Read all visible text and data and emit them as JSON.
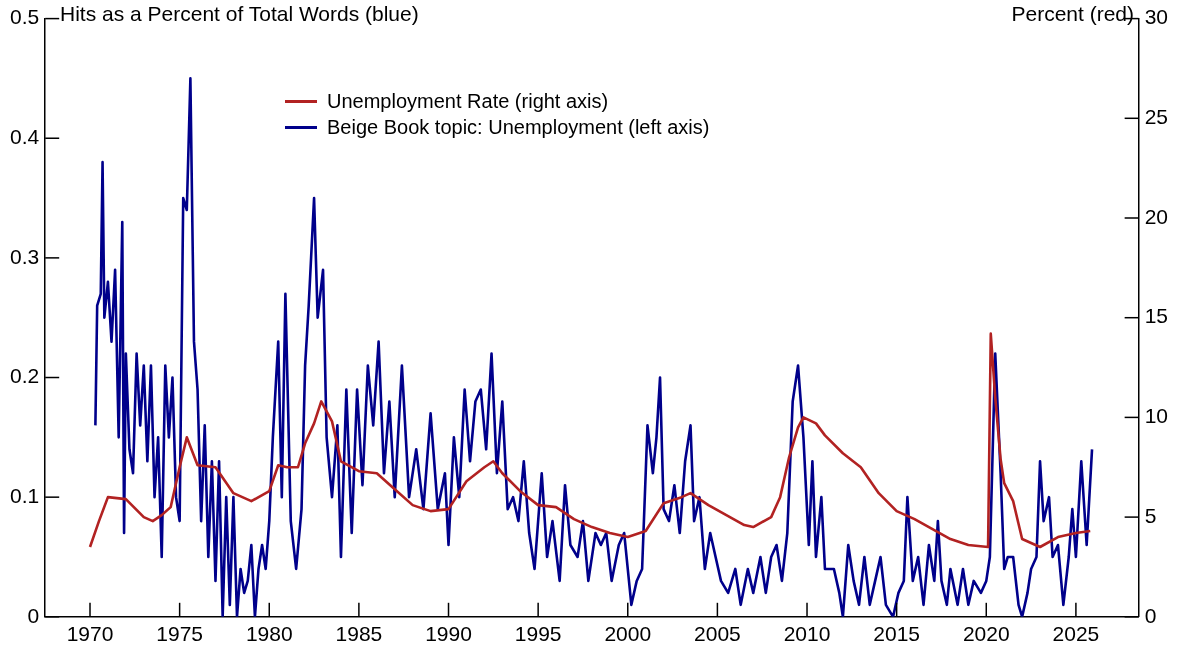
{
  "chart_data": {
    "type": "line",
    "ylabel": "Hits as a Percent of Total Words (blue)",
    "y2label": "Percent (red)",
    "xlim": [
      1967.5,
      2028.5
    ],
    "xticks": [
      1970,
      1975,
      1980,
      1985,
      1990,
      1995,
      2000,
      2005,
      2010,
      2015,
      2020,
      2025
    ],
    "ylim": [
      0,
      0.5
    ],
    "yticks": [
      0,
      0.1,
      0.2,
      0.3,
      0.4,
      0.5
    ],
    "y2lim": [
      0,
      30
    ],
    "y2ticks": [
      0,
      5,
      10,
      15,
      20,
      25,
      30
    ],
    "legend": "top",
    "grid": false,
    "marker": "none",
    "line_style": "solid",
    "series": [
      {
        "name": "Unemployment Rate (right axis)",
        "color": "#b22222",
        "axis": "y2",
        "x": [
          1970.0,
          1970.5,
          1971.0,
          1972.0,
          1973.0,
          1973.5,
          1974.0,
          1974.5,
          1975.0,
          1975.4,
          1976.0,
          1977.0,
          1978.0,
          1979.0,
          1980.0,
          1980.5,
          1981.0,
          1981.6,
          1982.0,
          1982.5,
          1982.9,
          1983.5,
          1984.0,
          1985.0,
          1986.0,
          1987.0,
          1988.0,
          1989.0,
          1990.0,
          1991.0,
          1992.0,
          1992.5,
          1993.0,
          1994.0,
          1995.0,
          1996.0,
          1997.0,
          1998.0,
          1999.0,
          2000.0,
          2001.0,
          2002.0,
          2003.0,
          2003.5,
          2004.5,
          2005.5,
          2006.5,
          2007.0,
          2008.0,
          2008.5,
          2009.0,
          2009.5,
          2009.8,
          2010.5,
          2011.0,
          2012.0,
          2013.0,
          2014.0,
          2015.0,
          2016.0,
          2017.0,
          2018.0,
          2019.0,
          2020.1,
          2020.25,
          2020.5,
          2020.8,
          2021.0,
          2021.5,
          2022.0,
          2023.0,
          2024.0,
          2025.0,
          2025.8
        ],
        "values": [
          3.5,
          4.8,
          6.0,
          5.9,
          5.0,
          4.8,
          5.1,
          5.5,
          7.5,
          9.0,
          7.6,
          7.5,
          6.2,
          5.8,
          6.3,
          7.6,
          7.5,
          7.5,
          8.7,
          9.7,
          10.8,
          9.8,
          7.8,
          7.3,
          7.2,
          6.4,
          5.6,
          5.3,
          5.4,
          6.8,
          7.5,
          7.8,
          7.2,
          6.3,
          5.6,
          5.5,
          4.9,
          4.5,
          4.2,
          4.0,
          4.3,
          5.7,
          6.0,
          6.2,
          5.6,
          5.1,
          4.6,
          4.5,
          5.0,
          6.0,
          8.0,
          9.5,
          10.0,
          9.7,
          9.1,
          8.2,
          7.5,
          6.2,
          5.3,
          4.9,
          4.4,
          3.9,
          3.6,
          3.5,
          14.2,
          11.0,
          7.9,
          6.7,
          5.8,
          3.9,
          3.5,
          4.0,
          4.2,
          4.3
        ]
      },
      {
        "name": "Beige Book topic: Unemployment (left axis)",
        "color": "#00008b",
        "x": [
          1970.3,
          1970.4,
          1970.6,
          1970.7,
          1970.8,
          1971.0,
          1971.2,
          1971.4,
          1971.6,
          1971.8,
          1971.9,
          1972.0,
          1972.2,
          1972.4,
          1972.6,
          1972.8,
          1973.0,
          1973.2,
          1973.4,
          1973.6,
          1973.8,
          1974.0,
          1974.2,
          1974.4,
          1974.6,
          1974.8,
          1975.0,
          1975.2,
          1975.4,
          1975.6,
          1975.8,
          1976.0,
          1976.2,
          1976.4,
          1976.6,
          1976.8,
          1977.0,
          1977.2,
          1977.4,
          1977.6,
          1977.8,
          1978.0,
          1978.2,
          1978.4,
          1978.6,
          1978.8,
          1979.0,
          1979.2,
          1979.4,
          1979.6,
          1979.8,
          1980.0,
          1980.2,
          1980.5,
          1980.7,
          1980.9,
          1981.2,
          1981.5,
          1981.8,
          1982.0,
          1982.2,
          1982.5,
          1982.7,
          1983.0,
          1983.2,
          1983.5,
          1983.8,
          1984.0,
          1984.3,
          1984.6,
          1984.9,
          1985.2,
          1985.5,
          1985.8,
          1986.1,
          1986.4,
          1986.7,
          1987.0,
          1987.4,
          1987.8,
          1988.2,
          1988.6,
          1989.0,
          1989.4,
          1989.8,
          1990.0,
          1990.3,
          1990.6,
          1990.9,
          1991.2,
          1991.5,
          1991.8,
          1992.1,
          1992.4,
          1992.7,
          1993.0,
          1993.3,
          1993.6,
          1993.9,
          1994.2,
          1994.5,
          1994.8,
          1995.2,
          1995.5,
          1995.8,
          1996.2,
          1996.5,
          1996.8,
          1997.2,
          1997.5,
          1997.8,
          1998.2,
          1998.5,
          1998.8,
          1999.1,
          1999.5,
          1999.8,
          2000.2,
          2000.5,
          2000.8,
          2001.1,
          2001.4,
          2001.6,
          2001.8,
          2002.0,
          2002.3,
          2002.6,
          2002.9,
          2003.2,
          2003.5,
          2003.7,
          2004.0,
          2004.3,
          2004.6,
          2004.9,
          2005.2,
          2005.6,
          2006.0,
          2006.3,
          2006.7,
          2007.0,
          2007.4,
          2007.7,
          2008.0,
          2008.3,
          2008.6,
          2008.9,
          2009.2,
          2009.5,
          2009.8,
          2010.1,
          2010.3,
          2010.5,
          2010.8,
          2011.0,
          2011.5,
          2011.8,
          2012.0,
          2012.3,
          2012.6,
          2012.9,
          2013.2,
          2013.5,
          2013.8,
          2014.1,
          2014.4,
          2014.8,
          2015.1,
          2015.4,
          2015.6,
          2015.9,
          2016.2,
          2016.5,
          2016.8,
          2017.1,
          2017.3,
          2017.5,
          2017.8,
          2018.0,
          2018.4,
          2018.7,
          2019.0,
          2019.3,
          2019.7,
          2020.0,
          2020.2,
          2020.5,
          2020.8,
          2021.0,
          2021.2,
          2021.5,
          2021.8,
          2022.0,
          2022.3,
          2022.5,
          2022.8,
          2023.0,
          2023.2,
          2023.5,
          2023.7,
          2024.0,
          2024.3,
          2024.6,
          2024.8,
          2025.0,
          2025.3,
          2025.6,
          2025.9
        ],
        "values": [
          0.16,
          0.26,
          0.27,
          0.38,
          0.25,
          0.28,
          0.23,
          0.29,
          0.15,
          0.33,
          0.07,
          0.22,
          0.14,
          0.12,
          0.22,
          0.16,
          0.21,
          0.13,
          0.21,
          0.1,
          0.15,
          0.05,
          0.21,
          0.15,
          0.2,
          0.1,
          0.08,
          0.35,
          0.34,
          0.45,
          0.23,
          0.19,
          0.08,
          0.16,
          0.05,
          0.13,
          0.03,
          0.13,
          0.0,
          0.1,
          0.01,
          0.1,
          0.0,
          0.04,
          0.02,
          0.03,
          0.06,
          0.0,
          0.04,
          0.06,
          0.04,
          0.08,
          0.15,
          0.23,
          0.1,
          0.27,
          0.08,
          0.04,
          0.09,
          0.21,
          0.26,
          0.35,
          0.25,
          0.29,
          0.15,
          0.1,
          0.16,
          0.05,
          0.19,
          0.07,
          0.19,
          0.11,
          0.21,
          0.16,
          0.23,
          0.12,
          0.18,
          0.1,
          0.21,
          0.1,
          0.14,
          0.09,
          0.17,
          0.09,
          0.12,
          0.06,
          0.15,
          0.1,
          0.19,
          0.13,
          0.18,
          0.19,
          0.14,
          0.22,
          0.12,
          0.18,
          0.09,
          0.1,
          0.08,
          0.13,
          0.07,
          0.04,
          0.12,
          0.05,
          0.08,
          0.03,
          0.11,
          0.06,
          0.05,
          0.08,
          0.03,
          0.07,
          0.06,
          0.07,
          0.03,
          0.06,
          0.07,
          0.01,
          0.03,
          0.04,
          0.16,
          0.12,
          0.15,
          0.2,
          0.09,
          0.08,
          0.11,
          0.07,
          0.13,
          0.16,
          0.08,
          0.1,
          0.04,
          0.07,
          0.05,
          0.03,
          0.02,
          0.04,
          0.01,
          0.04,
          0.02,
          0.05,
          0.02,
          0.05,
          0.06,
          0.03,
          0.07,
          0.18,
          0.21,
          0.15,
          0.06,
          0.13,
          0.05,
          0.1,
          0.04,
          0.04,
          0.02,
          0.0,
          0.06,
          0.03,
          0.01,
          0.05,
          0.01,
          0.03,
          0.05,
          0.01,
          0.0,
          0.02,
          0.03,
          0.1,
          0.03,
          0.05,
          0.01,
          0.06,
          0.03,
          0.08,
          0.03,
          0.01,
          0.04,
          0.01,
          0.04,
          0.01,
          0.03,
          0.02,
          0.03,
          0.05,
          0.22,
          0.12,
          0.04,
          0.05,
          0.05,
          0.01,
          0.0,
          0.02,
          0.04,
          0.05,
          0.13,
          0.08,
          0.1,
          0.05,
          0.06,
          0.01,
          0.05,
          0.09,
          0.05,
          0.13,
          0.06,
          0.14
        ]
      }
    ]
  }
}
